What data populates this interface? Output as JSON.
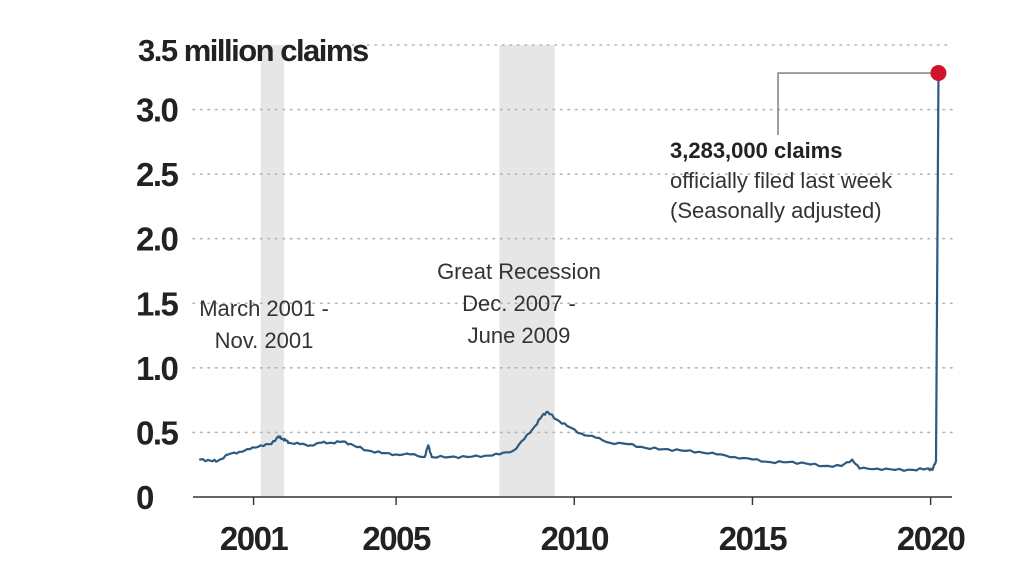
{
  "chart_data": {
    "type": "line",
    "ylabel": "3.5 million claims",
    "yticks": [
      {
        "value": 3.0,
        "label": "3.0"
      },
      {
        "value": 2.5,
        "label": "2.5"
      },
      {
        "value": 2.0,
        "label": "2.0"
      },
      {
        "value": 1.5,
        "label": "1.5"
      },
      {
        "value": 1.0,
        "label": "1.0"
      },
      {
        "value": 0.5,
        "label": "0.5"
      },
      {
        "value": 0,
        "label": "0"
      }
    ],
    "xticks": [
      {
        "value": 2001,
        "label": "2001"
      },
      {
        "value": 2005,
        "label": "2005"
      },
      {
        "value": 2010,
        "label": "2010"
      },
      {
        "value": 2015,
        "label": "2015"
      },
      {
        "value": 2020,
        "label": "2020"
      }
    ],
    "xlim": [
      1999.3,
      2020.6
    ],
    "ylim": [
      0,
      3.5
    ],
    "grid": "horizontal dotted",
    "line_color": "#2d5a80",
    "highlight_color": "#d0142c",
    "shade_color": "#e6e6e6",
    "recessions": [
      {
        "start": 2001.2,
        "end": 2001.85,
        "label_lines": [
          "March 2001 -",
          "Nov. 2001"
        ]
      },
      {
        "start": 2007.9,
        "end": 2009.45,
        "label_lines": [
          "Great Recession",
          "Dec. 2007 -",
          "June 2009"
        ]
      }
    ],
    "callout": {
      "x": 2020.22,
      "y": 3.283,
      "lines": [
        "3,283,000 claims",
        "officially filed last week",
        "(Seasonally adjusted)"
      ]
    },
    "series": [
      {
        "x": [
          1999.5,
          1999.8,
          2000.0,
          2000.3,
          2000.6,
          2000.9,
          2001.2,
          2001.5,
          2001.7,
          2001.8,
          2001.9,
          2002.0,
          2002.3,
          2002.6,
          2002.9,
          2003.2,
          2003.5,
          2003.8,
          2004.2,
          2004.6,
          2005.0,
          2005.4,
          2005.8,
          2005.9,
          2006.0,
          2006.5,
          2007.0,
          2007.5,
          2007.9,
          2008.3,
          2008.6,
          2008.9,
          2009.1,
          2009.25,
          2009.5,
          2009.8,
          2010.2,
          2010.6,
          2011.0,
          2011.5,
          2012.0,
          2012.5,
          2013.0,
          2013.5,
          2014.0,
          2014.5,
          2015.0,
          2015.5,
          2016.0,
          2016.5,
          2017.0,
          2017.5,
          2017.8,
          2018.0,
          2018.5,
          2019.0,
          2019.5,
          2019.9,
          2020.05,
          2020.15,
          2020.22
        ],
        "y": [
          0.29,
          0.28,
          0.28,
          0.33,
          0.35,
          0.37,
          0.4,
          0.41,
          0.47,
          0.45,
          0.44,
          0.42,
          0.41,
          0.4,
          0.42,
          0.42,
          0.43,
          0.4,
          0.36,
          0.34,
          0.33,
          0.33,
          0.31,
          0.4,
          0.31,
          0.31,
          0.31,
          0.32,
          0.33,
          0.36,
          0.45,
          0.55,
          0.63,
          0.66,
          0.6,
          0.55,
          0.49,
          0.46,
          0.42,
          0.41,
          0.38,
          0.37,
          0.36,
          0.35,
          0.33,
          0.31,
          0.29,
          0.27,
          0.27,
          0.26,
          0.24,
          0.24,
          0.29,
          0.22,
          0.22,
          0.21,
          0.21,
          0.22,
          0.21,
          0.28,
          3.283
        ]
      }
    ]
  }
}
